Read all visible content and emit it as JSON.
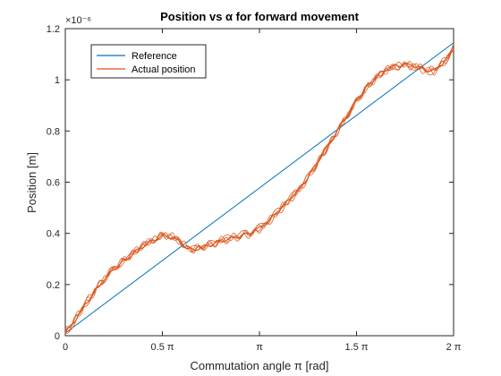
{
  "chart_data": {
    "type": "line",
    "title": "Position vs α for forward movement",
    "xlabel": "Commutation angle π [rad]",
    "ylabel": "Position [m]",
    "y_exponent_label": "×10⁻⁶",
    "xlim": [
      0,
      2
    ],
    "ylim": [
      0,
      1.2
    ],
    "x_unit": "π",
    "y_unit": "×1e-6 m",
    "x_ticks": [
      0,
      0.5,
      1,
      1.5,
      2
    ],
    "x_tick_labels": [
      "0",
      "0.5 π",
      "π",
      "1.5 π",
      "2 π"
    ],
    "y_ticks": [
      0,
      0.2,
      0.4,
      0.6,
      0.8,
      1.0,
      1.2
    ],
    "y_tick_labels": [
      "0",
      "0.2",
      "0.4",
      "0.6",
      "0.8",
      "1",
      "1.2"
    ],
    "grid": false,
    "legend_position": "top-left",
    "series": [
      {
        "name": "Reference",
        "color": "#0072bd",
        "x": [
          0,
          2
        ],
        "y": [
          0.01,
          1.145
        ]
      },
      {
        "name": "Actual position",
        "color": "#d95319",
        "x": [
          0,
          0.05,
          0.1,
          0.15,
          0.2,
          0.25,
          0.3,
          0.35,
          0.4,
          0.45,
          0.5,
          0.55,
          0.6,
          0.63,
          0.66,
          0.7,
          0.75,
          0.8,
          0.85,
          0.9,
          0.95,
          1.0,
          1.05,
          1.1,
          1.15,
          1.2,
          1.25,
          1.3,
          1.35,
          1.4,
          1.45,
          1.5,
          1.55,
          1.6,
          1.65,
          1.7,
          1.75,
          1.8,
          1.85,
          1.9,
          1.95,
          2.0
        ],
        "y": [
          0.01,
          0.06,
          0.12,
          0.17,
          0.22,
          0.26,
          0.29,
          0.32,
          0.35,
          0.37,
          0.39,
          0.385,
          0.36,
          0.34,
          0.335,
          0.345,
          0.355,
          0.37,
          0.38,
          0.39,
          0.4,
          0.42,
          0.45,
          0.49,
          0.53,
          0.57,
          0.62,
          0.68,
          0.74,
          0.8,
          0.86,
          0.92,
          0.97,
          1.01,
          1.04,
          1.055,
          1.06,
          1.055,
          1.04,
          1.035,
          1.07,
          1.12
        ]
      }
    ]
  }
}
